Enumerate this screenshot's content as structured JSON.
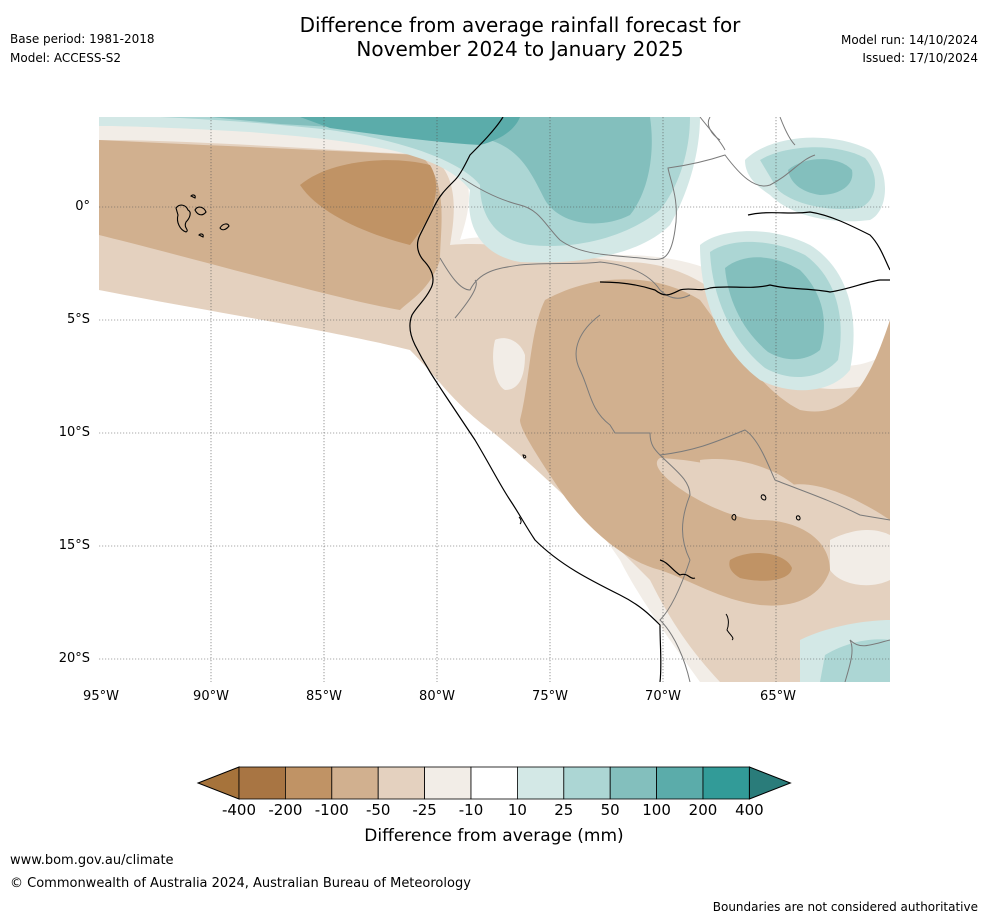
{
  "header": {
    "title_line1": "Difference from average rainfall forecast for",
    "title_line2": "November 2024 to January 2025",
    "base_period": "Base period: 1981-2018",
    "model": "Model: ACCESS-S2",
    "model_run": "Model run: 14/10/2024",
    "issued": "Issued: 17/10/2024"
  },
  "map": {
    "lat_labels": [
      "0°",
      "5°S",
      "10°S",
      "15°S",
      "20°S"
    ],
    "lon_labels": [
      "95°W",
      "90°W",
      "85°W",
      "80°W",
      "75°W",
      "70°W",
      "65°W"
    ],
    "extent": {
      "lon_min": -95,
      "lon_max": -60,
      "lat_min": -21,
      "lat_max": 4
    }
  },
  "colorbar": {
    "title": "Difference from average (mm)",
    "labels": [
      "-400",
      "-200",
      "-100",
      "-50",
      "-25",
      "-10",
      "10",
      "25",
      "50",
      "100",
      "200",
      "400"
    ],
    "colors": [
      "#a6733b",
      "#a87543",
      "#c09365",
      "#d1b08f",
      "#e4d1bf",
      "#f2ede7",
      "#ffffff",
      "#d3e8e6",
      "#acd6d4",
      "#83bfbd",
      "#5bacaa",
      "#329b98",
      "#2a7c7a"
    ]
  },
  "footer": {
    "url": "www.bom.gov.au/climate",
    "copyright": "© Commonwealth of Australia 2024, Australian Bureau of Meteorology",
    "disclaimer": "Boundaries are not considered authoritative"
  }
}
